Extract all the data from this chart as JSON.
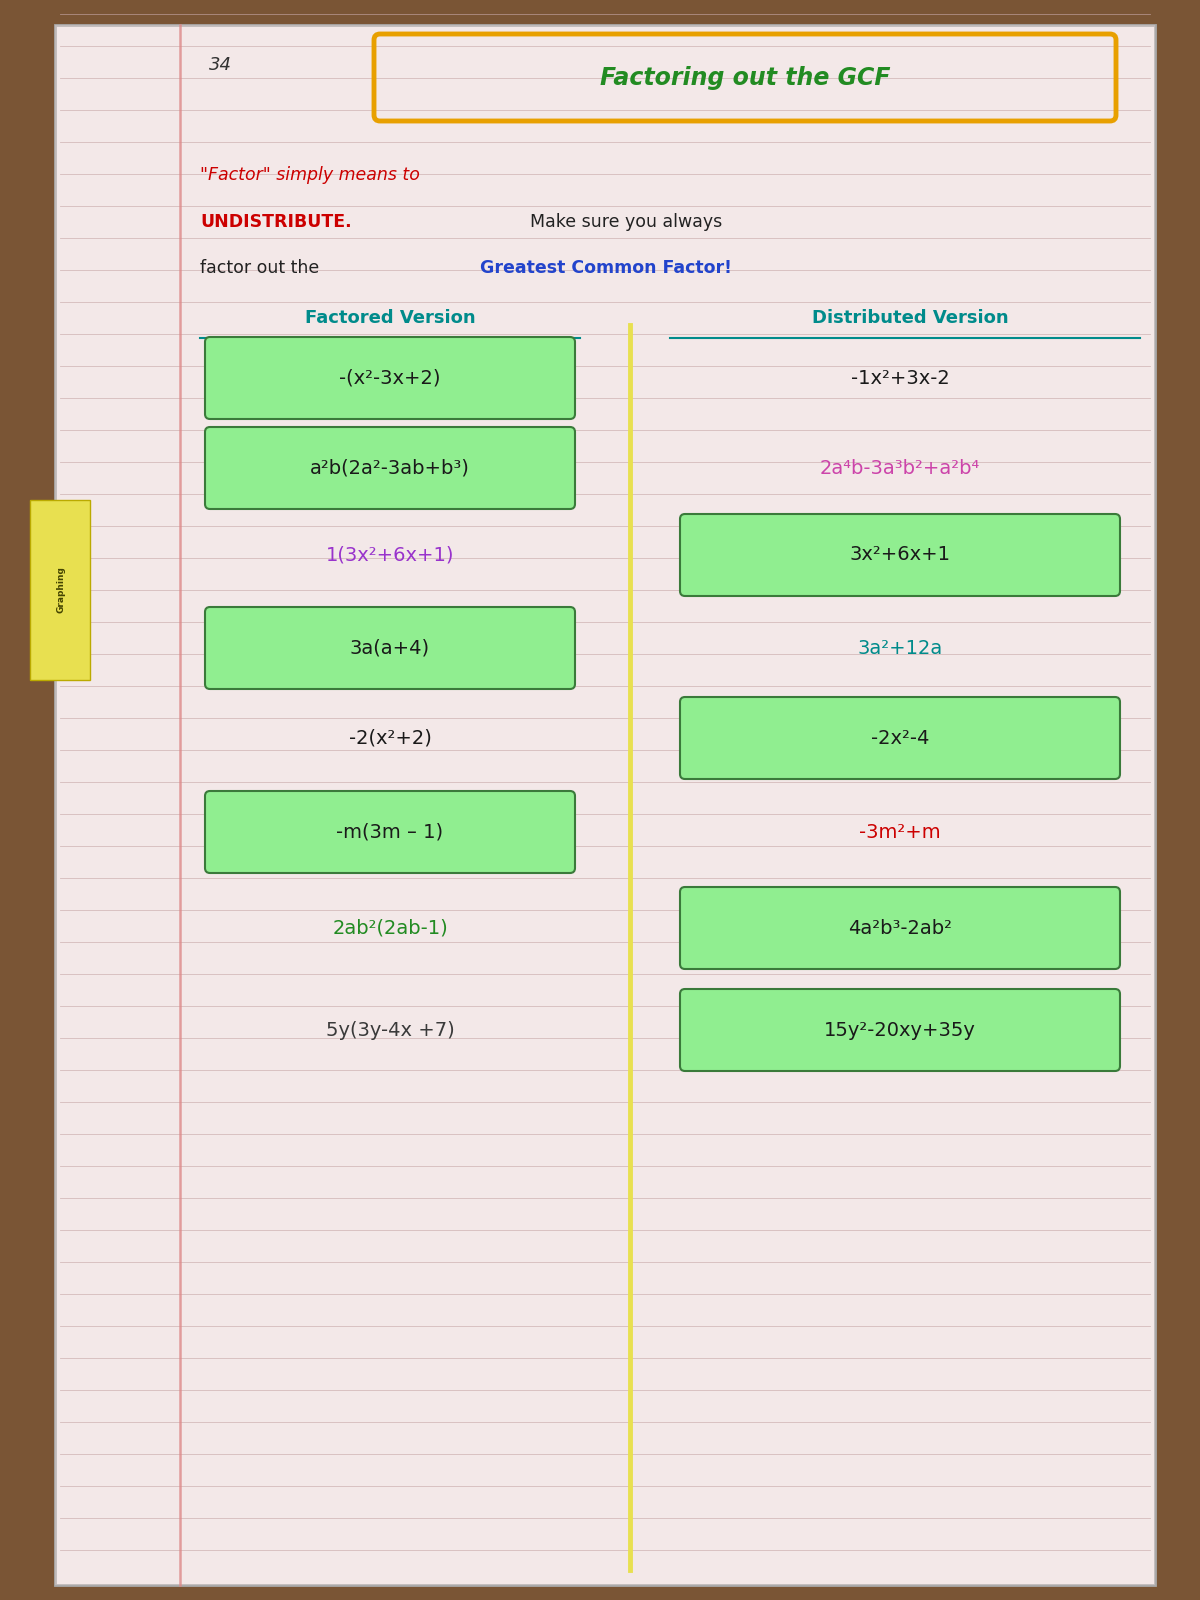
{
  "title": "Factoring out the GCF",
  "page_num": "34",
  "outer_bg": "#7a5535",
  "paper_color": "#f5eded",
  "line_color": "#d4b8b8",
  "tab_color": "#e8e050",
  "title_color": "#228B22",
  "title_box_color": "#E8A000",
  "col_left_label": "Factored Version",
  "col_right_label": "Distributed Version",
  "col_label_color": "#008B8B",
  "divider_color": "#e8e050",
  "green_box": "#90EE90",
  "green_box_border": "#3a7a3a",
  "rows": [
    {
      "left_text": "-(x²-3x+2)",
      "left_in_box": true,
      "left_color": "#1a1a1a",
      "right_text": "-1x²+3x-2",
      "right_in_box": false,
      "right_color": "#1a1a1a"
    },
    {
      "left_text": "a²b(2a²-3ab+b³)",
      "left_in_box": true,
      "left_color": "#1a1a1a",
      "right_text": "2a⁴b-3a³b²+a²b⁴",
      "right_in_box": false,
      "right_color": "#cc44aa"
    },
    {
      "left_text": "1(3x²+6x+1)",
      "left_in_box": false,
      "left_color": "#9933cc",
      "right_text": "3x²+6x+1",
      "right_in_box": true,
      "right_color": "#1a1a1a"
    },
    {
      "left_text": "3a(a+4)",
      "left_in_box": true,
      "left_color": "#1a1a1a",
      "right_text": "3a²+12a",
      "right_in_box": false,
      "right_color": "#008B8B"
    },
    {
      "left_text": "-2(x²+2)",
      "left_in_box": false,
      "left_color": "#1a1a1a",
      "right_text": "-2x²-4",
      "right_in_box": true,
      "right_color": "#1a1a1a"
    },
    {
      "left_text": "-m(3m – 1)",
      "left_in_box": true,
      "left_color": "#1a1a1a",
      "right_text": "-3m²+m",
      "right_in_box": false,
      "right_color": "#cc0000"
    },
    {
      "left_text": "2ab²(2ab-1)",
      "left_in_box": false,
      "left_color": "#228B22",
      "right_text": "4a²b³-2ab²",
      "right_in_box": true,
      "right_color": "#1a1a1a"
    },
    {
      "left_text": "5y(3y-4x +7)",
      "left_in_box": false,
      "left_color": "#3a3a3a",
      "right_text": "15y²-20xy+35y",
      "right_in_box": true,
      "right_color": "#1a1a1a"
    }
  ]
}
